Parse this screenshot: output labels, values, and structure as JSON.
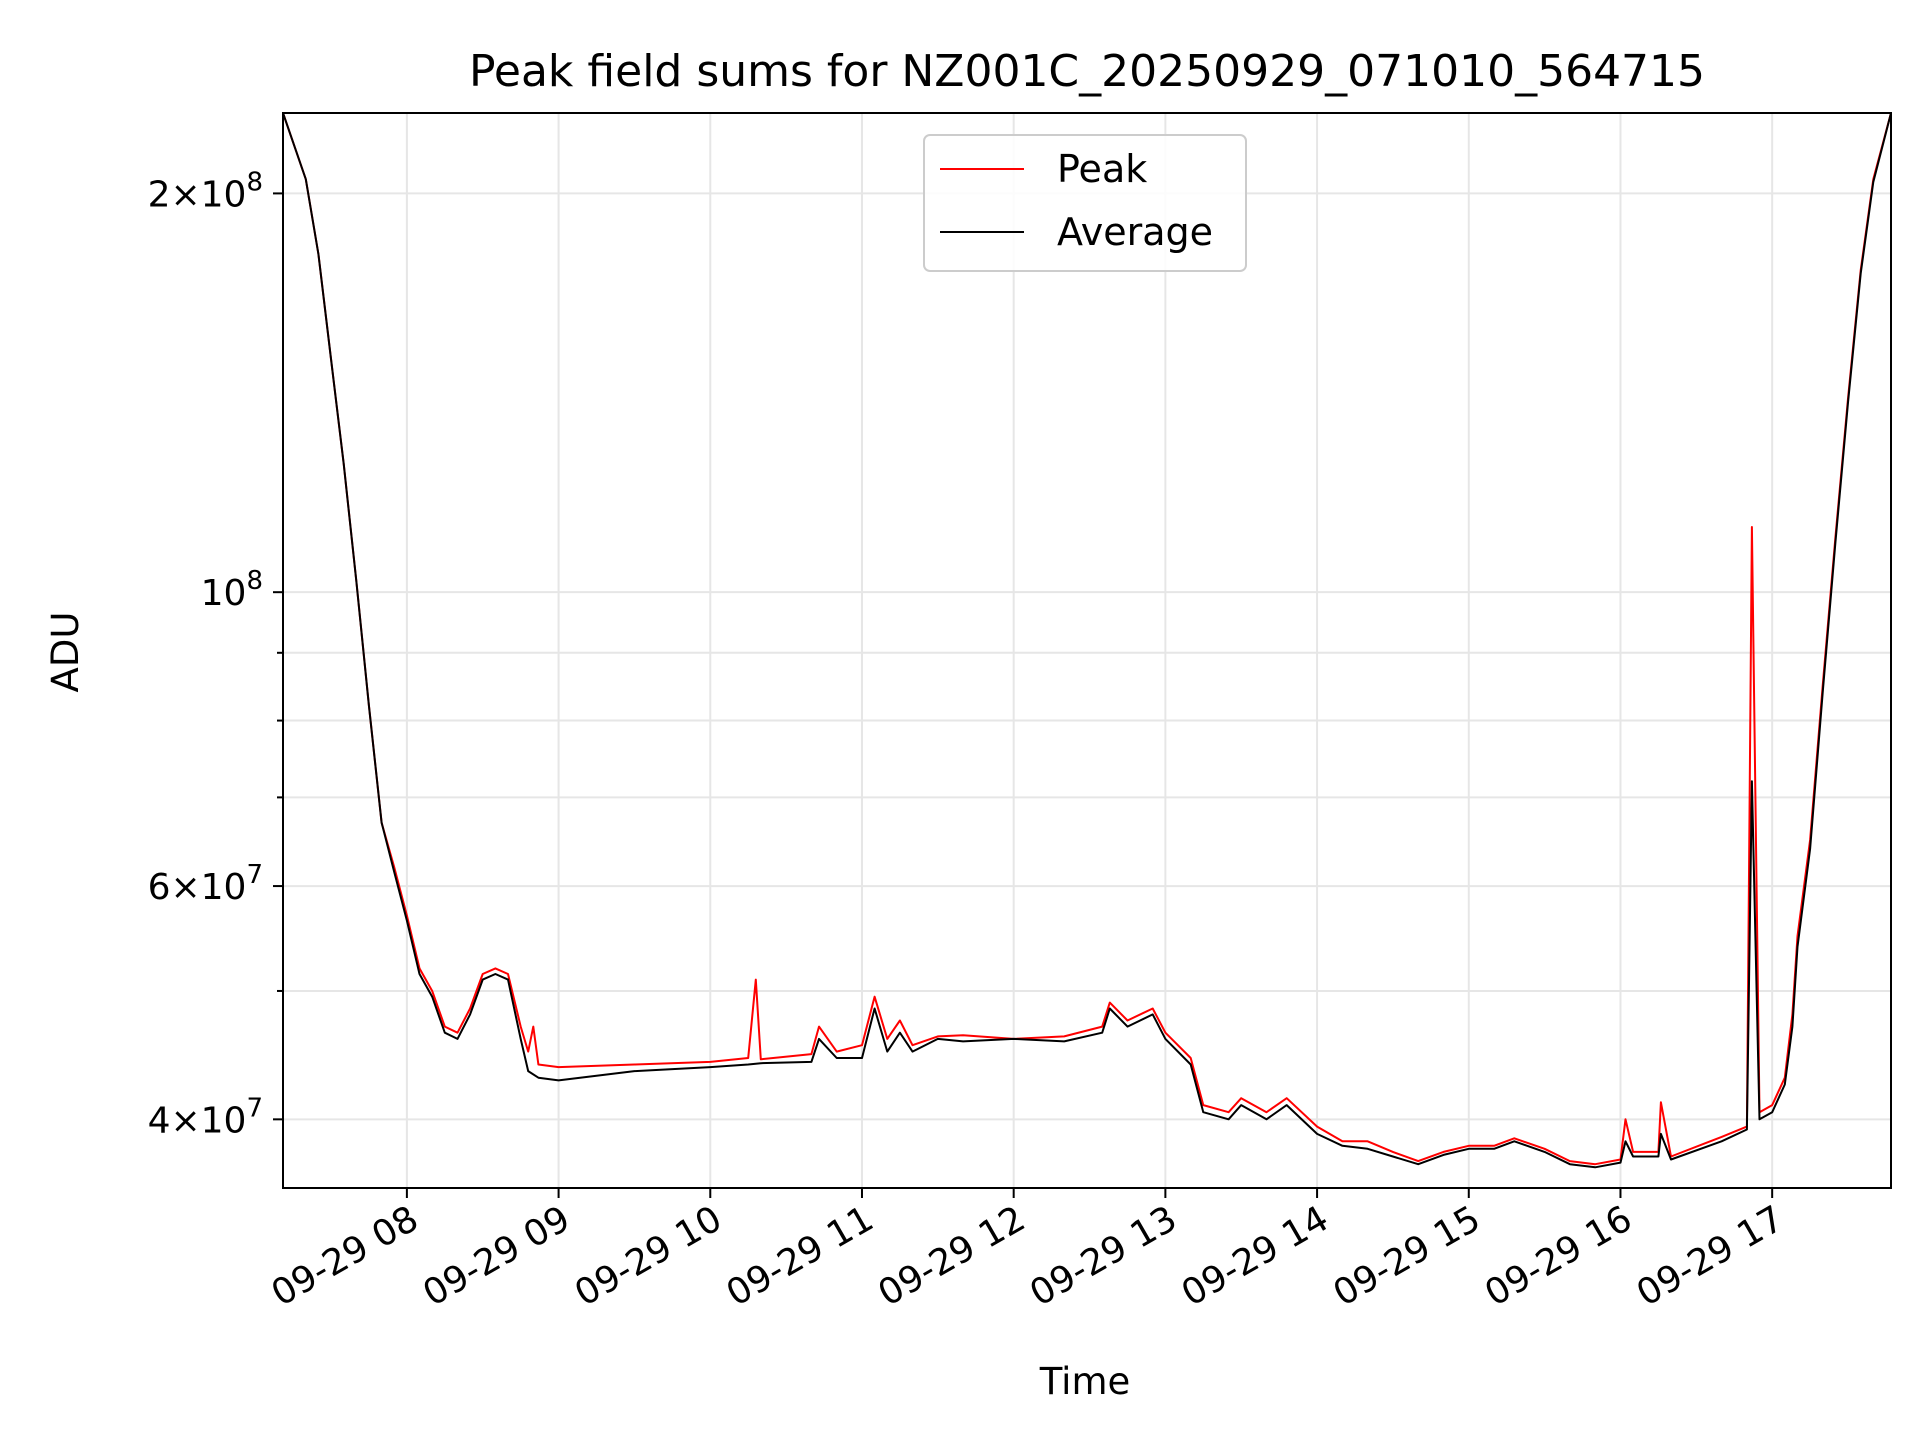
{
  "chart_data": {
    "type": "line",
    "title": "Peak field sums for NZ001C_20250929_071010_564715",
    "xlabel": "Time",
    "ylabel": "ADU",
    "y_scale": "log",
    "ylim": [
      35500000,
      230000000
    ],
    "xlim": [
      "2025-09-29 07:11",
      "2025-09-29 17:47"
    ],
    "grid": true,
    "legend": {
      "position": "upper center",
      "entries": [
        "Peak",
        "Average"
      ]
    },
    "x_ticks": [
      "09-29 08",
      "09-29 09",
      "09-29 10",
      "09-29 11",
      "09-29 12",
      "09-29 13",
      "09-29 14",
      "09-29 15",
      "09-29 16",
      "09-29 17"
    ],
    "y_ticks": [
      {
        "value": 40000000,
        "mantissa": "4",
        "exp": "7"
      },
      {
        "value": 60000000,
        "mantissa": "6",
        "exp": "7"
      },
      {
        "value": 100000000,
        "mantissa": "",
        "exp": "8"
      },
      {
        "value": 200000000,
        "mantissa": "2",
        "exp": "8"
      }
    ],
    "series": [
      {
        "name": "Peak",
        "color": "#ff0000",
        "points": [
          [
            "07:11",
            230000000
          ],
          [
            "07:20",
            205000000
          ],
          [
            "07:25",
            180000000
          ],
          [
            "07:30",
            150000000
          ],
          [
            "07:35",
            125000000
          ],
          [
            "07:40",
            102000000
          ],
          [
            "07:45",
            82000000
          ],
          [
            "07:50",
            67000000
          ],
          [
            "07:55",
            62000000
          ],
          [
            "08:00",
            57000000
          ],
          [
            "08:05",
            52000000
          ],
          [
            "08:10",
            50000000
          ],
          [
            "08:15",
            47000000
          ],
          [
            "08:20",
            46500000
          ],
          [
            "08:25",
            48500000
          ],
          [
            "08:30",
            51500000
          ],
          [
            "08:35",
            52000000
          ],
          [
            "08:40",
            51500000
          ],
          [
            "08:45",
            47000000
          ],
          [
            "08:48",
            45000000
          ],
          [
            "08:50",
            47000000
          ],
          [
            "08:52",
            44000000
          ],
          [
            "09:00",
            43800000
          ],
          [
            "09:30",
            44000000
          ],
          [
            "10:00",
            44200000
          ],
          [
            "10:15",
            44500000
          ],
          [
            "10:18",
            51000000
          ],
          [
            "10:20",
            44400000
          ],
          [
            "10:40",
            44800000
          ],
          [
            "10:43",
            47000000
          ],
          [
            "10:50",
            45000000
          ],
          [
            "11:00",
            45500000
          ],
          [
            "11:05",
            49500000
          ],
          [
            "11:10",
            46000000
          ],
          [
            "11:15",
            47500000
          ],
          [
            "11:20",
            45500000
          ],
          [
            "11:30",
            46200000
          ],
          [
            "11:40",
            46300000
          ],
          [
            "12:00",
            46000000
          ],
          [
            "12:20",
            46200000
          ],
          [
            "12:35",
            47000000
          ],
          [
            "12:38",
            49000000
          ],
          [
            "12:45",
            47500000
          ],
          [
            "12:55",
            48500000
          ],
          [
            "13:00",
            46500000
          ],
          [
            "13:10",
            44500000
          ],
          [
            "13:15",
            41000000
          ],
          [
            "13:25",
            40500000
          ],
          [
            "13:30",
            41500000
          ],
          [
            "13:40",
            40500000
          ],
          [
            "13:48",
            41500000
          ],
          [
            "14:00",
            39500000
          ],
          [
            "14:10",
            38500000
          ],
          [
            "14:20",
            38500000
          ],
          [
            "14:30",
            37800000
          ],
          [
            "14:40",
            37200000
          ],
          [
            "14:50",
            37800000
          ],
          [
            "15:00",
            38200000
          ],
          [
            "15:10",
            38200000
          ],
          [
            "15:18",
            38700000
          ],
          [
            "15:30",
            38000000
          ],
          [
            "15:40",
            37200000
          ],
          [
            "15:50",
            37000000
          ],
          [
            "16:00",
            37300000
          ],
          [
            "16:02",
            40000000
          ],
          [
            "16:05",
            37800000
          ],
          [
            "16:15",
            37800000
          ],
          [
            "16:16",
            41200000
          ],
          [
            "16:20",
            37500000
          ],
          [
            "16:40",
            38800000
          ],
          [
            "16:50",
            39500000
          ],
          [
            "16:52",
            112000000
          ],
          [
            "16:55",
            40500000
          ],
          [
            "17:00",
            41000000
          ],
          [
            "17:05",
            43000000
          ],
          [
            "17:08",
            48000000
          ],
          [
            "17:10",
            55000000
          ],
          [
            "17:15",
            65000000
          ],
          [
            "17:20",
            85000000
          ],
          [
            "17:25",
            110000000
          ],
          [
            "17:30",
            140000000
          ],
          [
            "17:35",
            175000000
          ],
          [
            "17:40",
            205000000
          ],
          [
            "17:47",
            230000000
          ]
        ]
      },
      {
        "name": "Average",
        "color": "#000000",
        "points": [
          [
            "07:11",
            230000000
          ],
          [
            "07:20",
            205000000
          ],
          [
            "07:25",
            180000000
          ],
          [
            "07:30",
            150000000
          ],
          [
            "07:35",
            125000000
          ],
          [
            "07:40",
            102000000
          ],
          [
            "07:45",
            82000000
          ],
          [
            "07:50",
            67000000
          ],
          [
            "07:55",
            61500000
          ],
          [
            "08:00",
            56500000
          ],
          [
            "08:05",
            51500000
          ],
          [
            "08:10",
            49500000
          ],
          [
            "08:15",
            46500000
          ],
          [
            "08:20",
            46000000
          ],
          [
            "08:25",
            48000000
          ],
          [
            "08:30",
            51000000
          ],
          [
            "08:35",
            51500000
          ],
          [
            "08:40",
            51000000
          ],
          [
            "08:45",
            46000000
          ],
          [
            "08:48",
            43500000
          ],
          [
            "08:52",
            43000000
          ],
          [
            "09:00",
            42800000
          ],
          [
            "09:30",
            43500000
          ],
          [
            "10:00",
            43800000
          ],
          [
            "10:15",
            44000000
          ],
          [
            "10:20",
            44100000
          ],
          [
            "10:40",
            44200000
          ],
          [
            "10:43",
            46000000
          ],
          [
            "10:50",
            44500000
          ],
          [
            "11:00",
            44500000
          ],
          [
            "11:05",
            48500000
          ],
          [
            "11:10",
            45000000
          ],
          [
            "11:15",
            46500000
          ],
          [
            "11:20",
            45000000
          ],
          [
            "11:30",
            46000000
          ],
          [
            "11:40",
            45800000
          ],
          [
            "12:00",
            46000000
          ],
          [
            "12:20",
            45800000
          ],
          [
            "12:35",
            46500000
          ],
          [
            "12:38",
            48500000
          ],
          [
            "12:45",
            47000000
          ],
          [
            "12:55",
            48000000
          ],
          [
            "13:00",
            46000000
          ],
          [
            "13:10",
            44000000
          ],
          [
            "13:15",
            40500000
          ],
          [
            "13:25",
            40000000
          ],
          [
            "13:30",
            41000000
          ],
          [
            "13:40",
            40000000
          ],
          [
            "13:48",
            41000000
          ],
          [
            "14:00",
            39000000
          ],
          [
            "14:10",
            38200000
          ],
          [
            "14:20",
            38000000
          ],
          [
            "14:30",
            37500000
          ],
          [
            "14:40",
            37000000
          ],
          [
            "14:50",
            37600000
          ],
          [
            "15:00",
            38000000
          ],
          [
            "15:10",
            38000000
          ],
          [
            "15:18",
            38500000
          ],
          [
            "15:30",
            37800000
          ],
          [
            "15:40",
            37000000
          ],
          [
            "15:50",
            36800000
          ],
          [
            "16:00",
            37100000
          ],
          [
            "16:02",
            38500000
          ],
          [
            "16:05",
            37500000
          ],
          [
            "16:15",
            37500000
          ],
          [
            "16:16",
            39000000
          ],
          [
            "16:20",
            37300000
          ],
          [
            "16:40",
            38500000
          ],
          [
            "16:50",
            39300000
          ],
          [
            "16:52",
            72000000
          ],
          [
            "16:55",
            40000000
          ],
          [
            "17:00",
            40500000
          ],
          [
            "17:05",
            42500000
          ],
          [
            "17:08",
            47000000
          ],
          [
            "17:10",
            54000000
          ],
          [
            "17:15",
            64000000
          ],
          [
            "17:20",
            84000000
          ],
          [
            "17:25",
            109000000
          ],
          [
            "17:30",
            139000000
          ],
          [
            "17:35",
            174000000
          ],
          [
            "17:40",
            204000000
          ],
          [
            "17:47",
            230000000
          ]
        ]
      }
    ]
  }
}
